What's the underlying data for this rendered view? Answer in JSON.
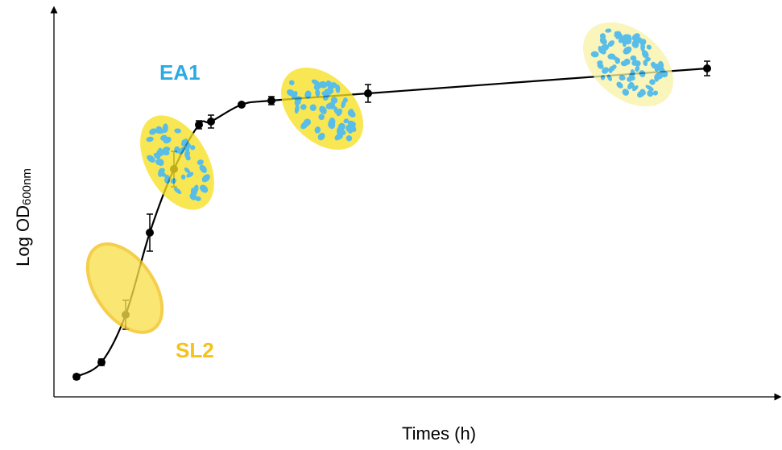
{
  "chart_data": {
    "type": "line",
    "x_label": "Times (h)",
    "y_label": "Log OD",
    "y_label_subscript": "600nm",
    "annotations": [
      {
        "text": "EA1",
        "color": "#29abe2"
      },
      {
        "text": "SL2",
        "color": "#f5c21b"
      }
    ],
    "xlim": [
      0,
      90
    ],
    "ylim": [
      0,
      48
    ],
    "series": [
      {
        "color": "#000000",
        "x": [
          2.8,
          5.9,
          8.9,
          11.9,
          14.9,
          18.0,
          19.5,
          23.3,
          27.0,
          39.0,
          81.1
        ],
        "values": [
          2.5,
          4.3,
          10.2,
          20.4,
          28.3,
          33.8,
          34.2,
          36.3,
          36.8,
          37.7,
          40.8
        ],
        "errors": [
          0.3,
          0.4,
          1.8,
          2.3,
          2.2,
          0.5,
          0.8,
          0.2,
          0.5,
          1.1,
          0.9
        ]
      }
    ]
  }
}
